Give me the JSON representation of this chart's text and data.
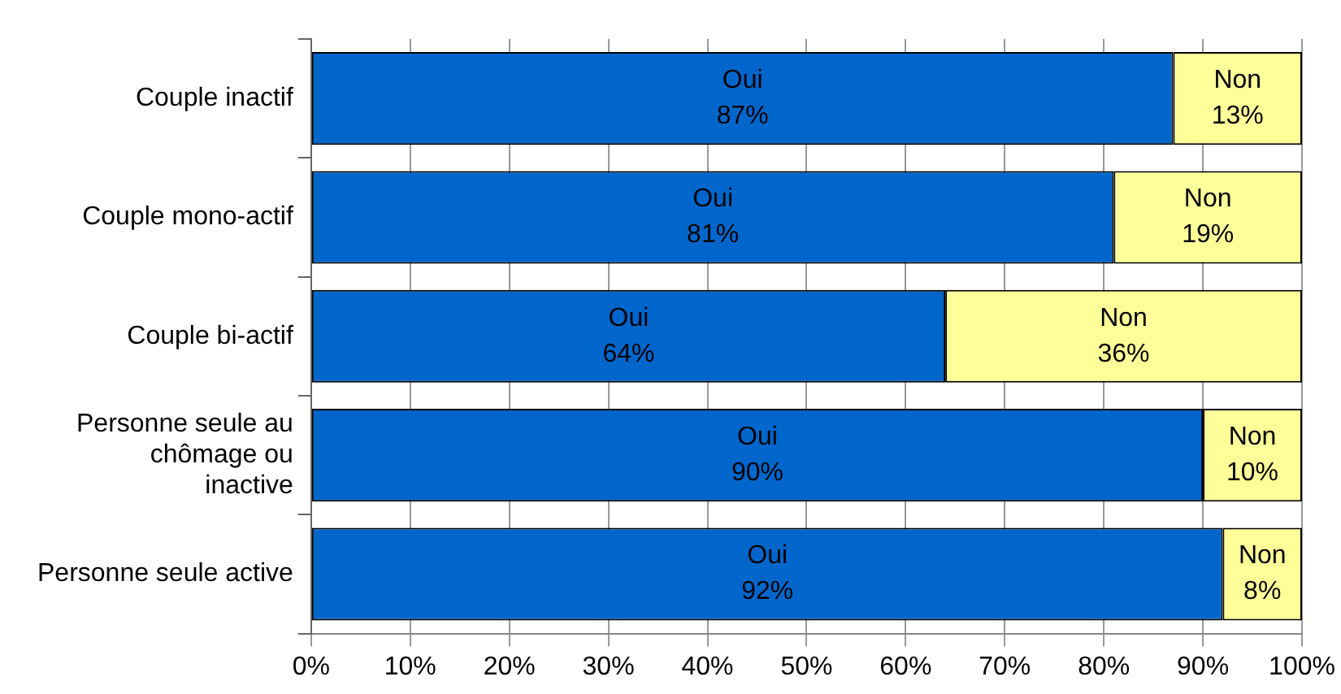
{
  "chart_data": {
    "type": "bar",
    "orientation": "horizontal",
    "stacked": true,
    "categories": [
      "Couple inactif",
      "Couple mono-actif",
      "Couple bi-actif",
      "Personne seule au chômage ou inactive",
      "Personne seule active"
    ],
    "series": [
      {
        "name": "Oui",
        "color": "#0066cc",
        "values": [
          87,
          81,
          64,
          90,
          92
        ],
        "value_labels": [
          "87%",
          "81%",
          "64%",
          "90%",
          "92%"
        ]
      },
      {
        "name": "Non",
        "color": "#ffff99",
        "values": [
          13,
          19,
          36,
          10,
          8
        ],
        "value_labels": [
          "13%",
          "19%",
          "36%",
          "10%",
          "8%"
        ]
      }
    ],
    "xlim": [
      0,
      100
    ],
    "xticks": [
      {
        "value": 0,
        "label": "0%"
      },
      {
        "value": 10,
        "label": "10%"
      },
      {
        "value": 20,
        "label": "20%"
      },
      {
        "value": 30,
        "label": "30%"
      },
      {
        "value": 40,
        "label": "40%"
      },
      {
        "value": 50,
        "label": "50%"
      },
      {
        "value": 60,
        "label": "60%"
      },
      {
        "value": 70,
        "label": "70%"
      },
      {
        "value": 80,
        "label": "80%"
      },
      {
        "value": 90,
        "label": "90%"
      },
      {
        "value": 100,
        "label": "100%"
      }
    ],
    "grid": "x",
    "legend": false
  }
}
